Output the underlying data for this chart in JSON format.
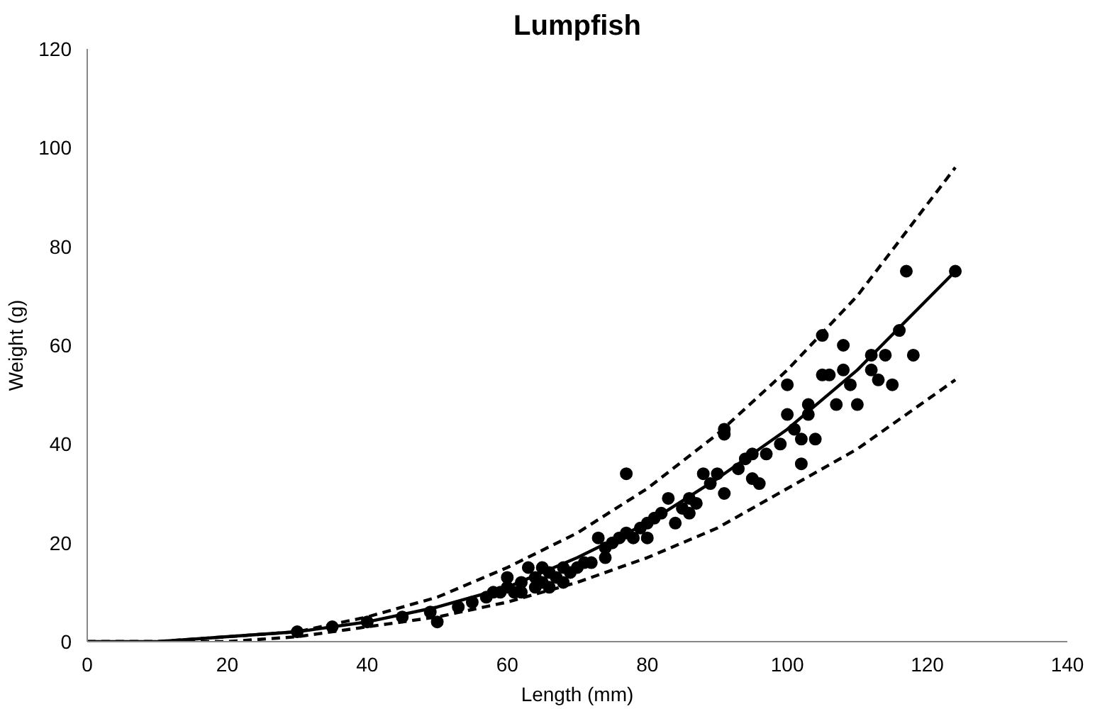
{
  "chart_data": {
    "type": "scatter",
    "title": "Lumpfish",
    "xlabel": "Length (mm)",
    "ylabel": "Weight (g)",
    "xlim": [
      0,
      140
    ],
    "ylim": [
      0,
      120
    ],
    "xticks": [
      0,
      20,
      40,
      60,
      80,
      100,
      120,
      140
    ],
    "yticks": [
      0,
      20,
      40,
      60,
      80,
      100,
      120
    ],
    "grid": false,
    "series": [
      {
        "marker": "circle",
        "color": "#000000",
        "x": [
          30,
          35,
          40,
          45,
          49,
          50,
          53,
          55,
          57,
          58,
          59,
          60,
          60,
          61,
          62,
          62,
          63,
          64,
          64,
          65,
          65,
          66,
          66,
          67,
          68,
          68,
          69,
          70,
          71,
          72,
          73,
          74,
          74,
          75,
          76,
          77,
          77,
          78,
          79,
          80,
          80,
          81,
          82,
          83,
          84,
          85,
          86,
          86,
          87,
          88,
          89,
          90,
          91,
          91,
          91,
          93,
          94,
          95,
          95,
          96,
          97,
          99,
          100,
          100,
          101,
          102,
          102,
          103,
          103,
          104,
          105,
          105,
          106,
          107,
          108,
          108,
          109,
          110,
          112,
          112,
          113,
          114,
          115,
          116,
          117,
          118,
          124
        ],
        "values": [
          2,
          3,
          4,
          5,
          6,
          4,
          7,
          8,
          9,
          10,
          10,
          11,
          13,
          10,
          12,
          10,
          15,
          11,
          13,
          12,
          15,
          11,
          14,
          13,
          12,
          15,
          14,
          15,
          16,
          16,
          21,
          17,
          19,
          20,
          21,
          22,
          34,
          21,
          23,
          24,
          21,
          25,
          26,
          29,
          24,
          27,
          29,
          26,
          28,
          34,
          32,
          34,
          30,
          43,
          42,
          35,
          37,
          38,
          33,
          32,
          38,
          40,
          46,
          52,
          43,
          41,
          36,
          46,
          48,
          41,
          62,
          54,
          54,
          48,
          60,
          55,
          52,
          48,
          55,
          58,
          53,
          58,
          52,
          63,
          75,
          58,
          75
        ]
      },
      {
        "type": "line",
        "line_style": "solid",
        "color": "#000000",
        "x": [
          0,
          10,
          20,
          30,
          40,
          50,
          60,
          70,
          80,
          90,
          100,
          110,
          124
        ],
        "values": [
          0,
          0,
          1,
          2,
          4,
          7,
          11,
          17,
          24,
          33,
          43,
          55,
          75
        ]
      },
      {
        "type": "line",
        "line_style": "dashed",
        "color": "#000000",
        "x": [
          0,
          10,
          20,
          30,
          40,
          50,
          60,
          70,
          80,
          90,
          100,
          110,
          124
        ],
        "values": [
          0,
          0,
          1,
          2,
          5,
          9,
          15,
          22,
          31,
          42,
          55,
          70,
          96
        ]
      },
      {
        "type": "line",
        "line_style": "dashed",
        "color": "#000000",
        "x": [
          0,
          10,
          20,
          30,
          40,
          50,
          60,
          70,
          80,
          90,
          100,
          110,
          124
        ],
        "values": [
          0,
          0,
          0,
          1,
          3,
          5,
          8,
          12,
          17,
          23,
          31,
          39,
          53
        ]
      }
    ]
  }
}
